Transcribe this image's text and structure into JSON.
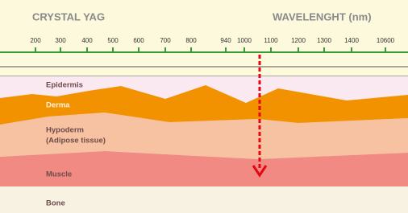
{
  "header": {
    "title": "CRYSTAL YAG",
    "axis_label": "WAVELENGHT (nm)"
  },
  "scale": {
    "ticks": [
      "200",
      "300",
      "400",
      "500",
      "600",
      "700",
      "800",
      "940",
      "1000",
      "1100",
      "1200",
      "1300",
      "1400",
      "10600"
    ]
  },
  "layers": [
    {
      "label": "Epidermis"
    },
    {
      "label": "Derma"
    },
    {
      "label": "Hypoderm",
      "sublabel": "(Adipose tissue)"
    },
    {
      "label": "Muscle"
    },
    {
      "label": "Bone"
    }
  ]
}
